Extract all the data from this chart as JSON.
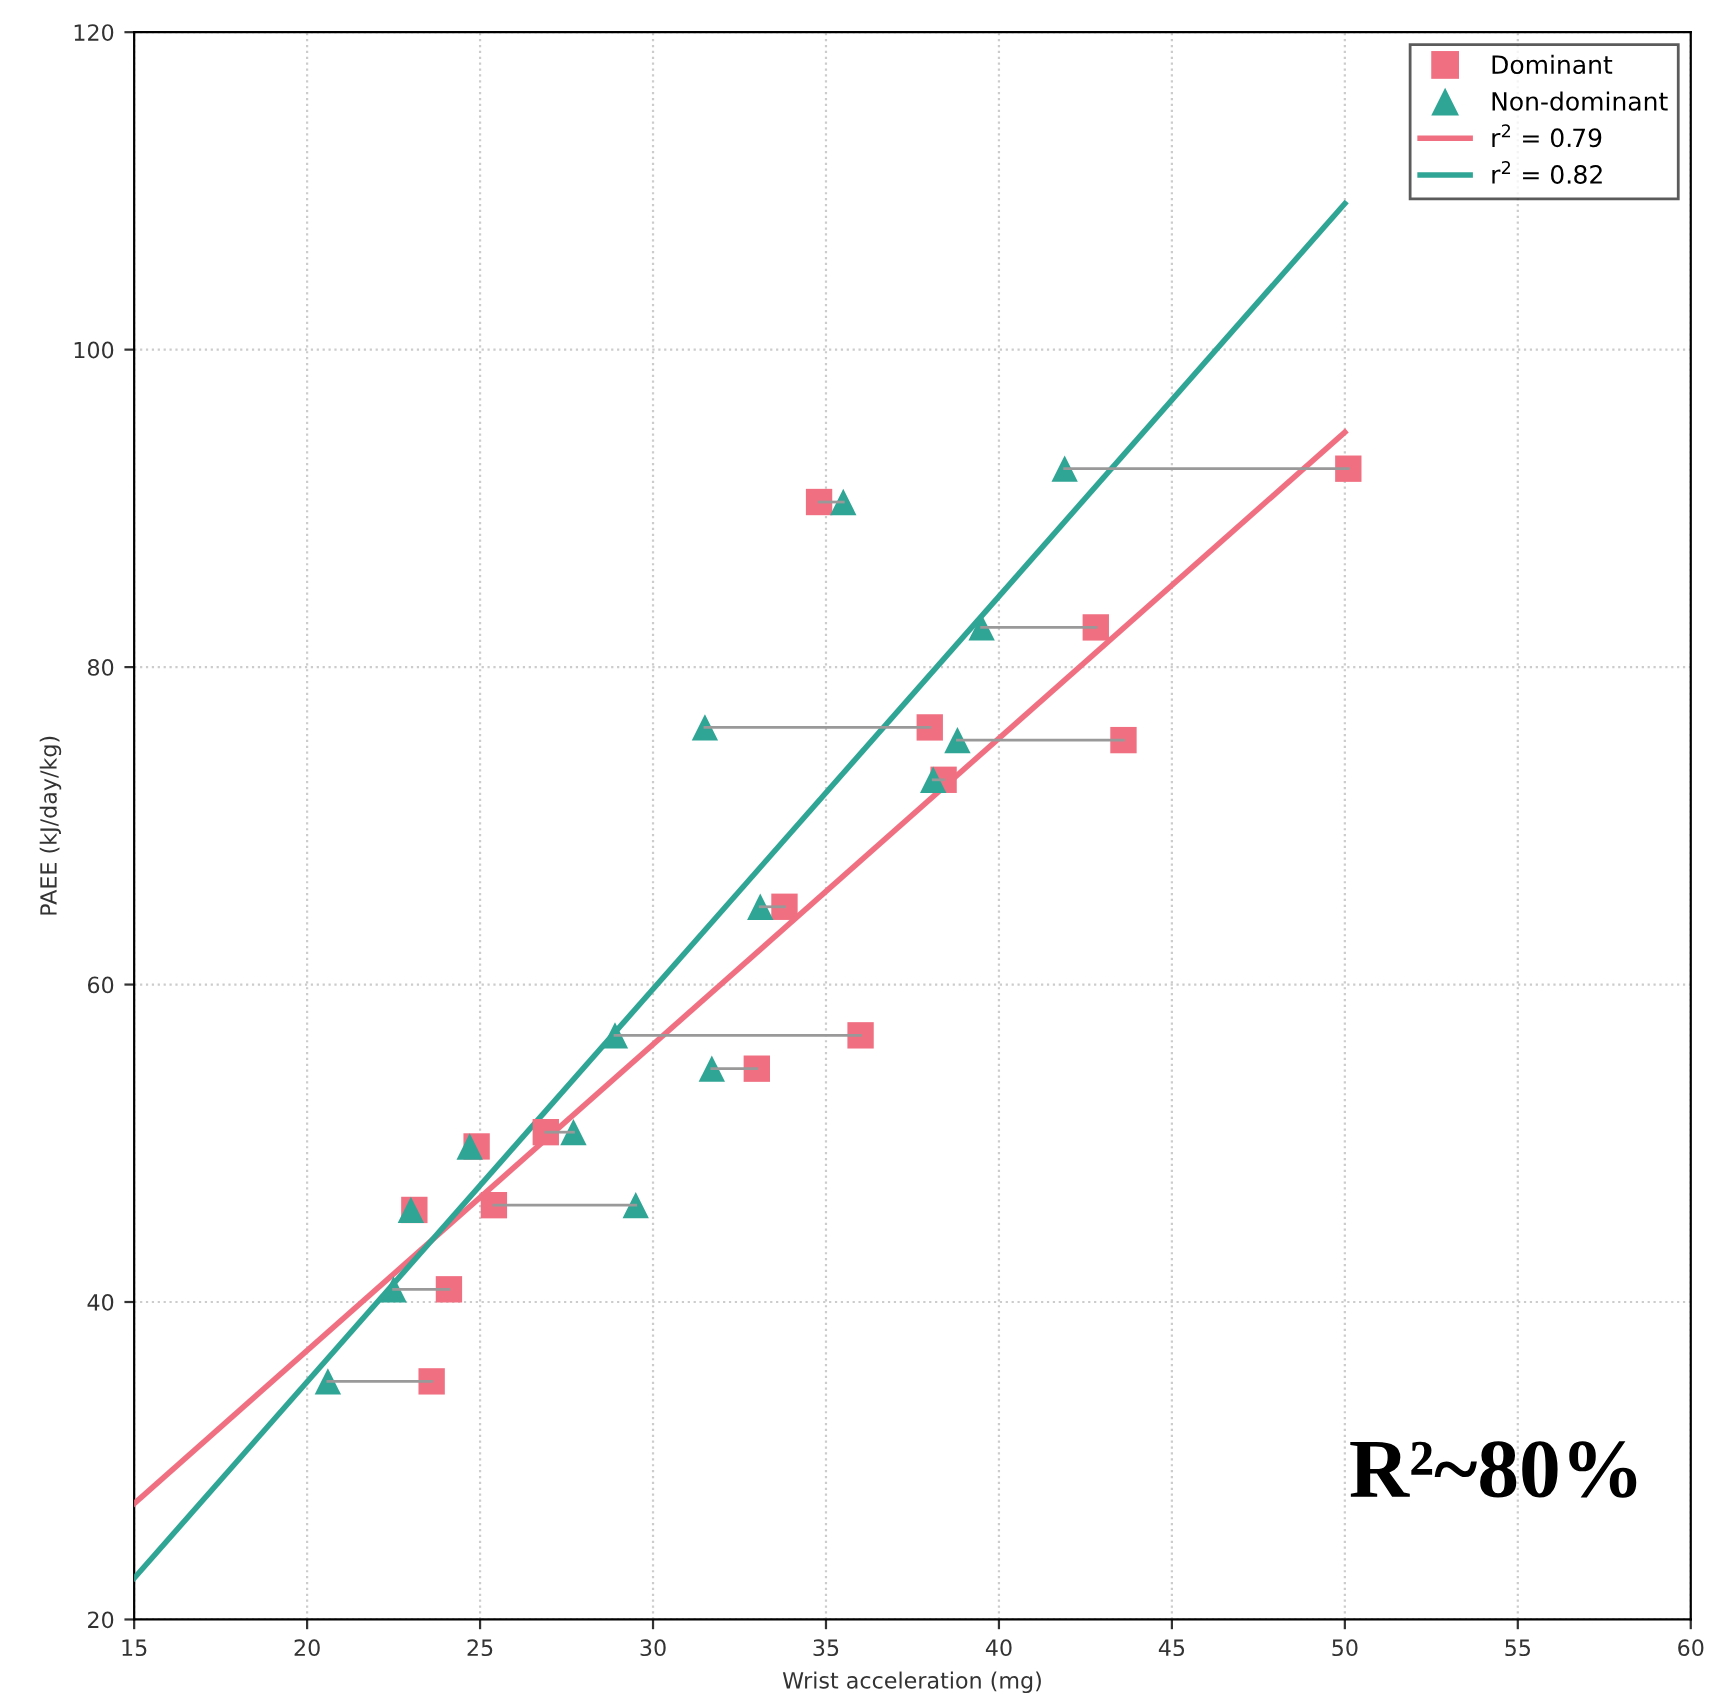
{
  "chart_data": {
    "type": "scatter",
    "xlabel": "Wrist acceleration (mg)",
    "ylabel": "PAEE (kJ/day/kg)",
    "xlim": [
      15,
      60
    ],
    "xticks": [
      15,
      20,
      25,
      30,
      35,
      40,
      45,
      50,
      55,
      60
    ],
    "ylim": [
      20,
      120
    ],
    "yticks": [
      20,
      40,
      60,
      80,
      100,
      120
    ],
    "grid": true,
    "legend": "top right",
    "annotations": [
      "R²~80%"
    ],
    "series": [
      {
        "type": "line",
        "color": "#999999",
        "marker": "none",
        "line_style": "solid",
        "x": [
          50.1,
          41.9
        ],
        "values": [
          92.5,
          92.5
        ]
      },
      {
        "type": "line",
        "color": "#999999",
        "marker": "none",
        "line_style": "solid",
        "x": [
          34.8,
          35.5
        ],
        "values": [
          90.4,
          90.4
        ]
      },
      {
        "type": "line",
        "color": "#999999",
        "marker": "none",
        "line_style": "solid",
        "x": [
          42.8,
          39.5
        ],
        "values": [
          82.5,
          82.5
        ]
      },
      {
        "type": "line",
        "color": "#999999",
        "marker": "none",
        "line_style": "solid",
        "x": [
          38.0,
          31.5
        ],
        "values": [
          76.2,
          76.2
        ]
      },
      {
        "type": "line",
        "color": "#999999",
        "marker": "none",
        "line_style": "solid",
        "x": [
          43.6,
          38.8
        ],
        "values": [
          75.4,
          75.4
        ]
      },
      {
        "type": "line",
        "color": "#999999",
        "marker": "none",
        "line_style": "solid",
        "x": [
          38.4,
          38.1
        ],
        "values": [
          72.9,
          72.9
        ]
      },
      {
        "type": "line",
        "color": "#999999",
        "marker": "none",
        "line_style": "solid",
        "x": [
          33.8,
          33.1
        ],
        "values": [
          64.9,
          64.9
        ]
      },
      {
        "type": "line",
        "color": "#999999",
        "marker": "none",
        "line_style": "solid",
        "x": [
          36.0,
          28.9
        ],
        "values": [
          56.8,
          56.8
        ]
      },
      {
        "type": "line",
        "color": "#999999",
        "marker": "none",
        "line_style": "solid",
        "x": [
          33.0,
          31.7
        ],
        "values": [
          54.7,
          54.7
        ]
      },
      {
        "type": "line",
        "color": "#999999",
        "marker": "none",
        "line_style": "solid",
        "x": [
          26.9,
          27.7
        ],
        "values": [
          50.7,
          50.7
        ]
      },
      {
        "type": "line",
        "color": "#999999",
        "marker": "none",
        "line_style": "solid",
        "x": [
          25.4,
          29.5
        ],
        "values": [
          46.1,
          46.1
        ]
      },
      {
        "type": "line",
        "color": "#999999",
        "marker": "none",
        "line_style": "solid",
        "x": [
          24.1,
          22.5
        ],
        "values": [
          40.8,
          40.8
        ]
      },
      {
        "type": "line",
        "color": "#999999",
        "marker": "none",
        "line_style": "solid",
        "x": [
          23.6,
          20.6
        ],
        "values": [
          35.0,
          35.0
        ]
      },
      {
        "name": "Dominant",
        "color": "#f07082",
        "marker": "square",
        "x": [
          50.1,
          34.8,
          42.8,
          38.0,
          43.6,
          38.4,
          33.8,
          36.0,
          33.0,
          26.9,
          24.9,
          25.4,
          23.1,
          24.1,
          23.6
        ],
        "values": [
          92.5,
          90.4,
          82.5,
          76.2,
          75.4,
          72.9,
          64.9,
          56.8,
          54.7,
          50.7,
          49.8,
          46.1,
          45.8,
          40.8,
          35.0
        ]
      },
      {
        "name": "Non-dominant",
        "color": "#2fa595",
        "marker": "triangle",
        "x": [
          41.9,
          35.5,
          39.5,
          31.5,
          38.8,
          38.1,
          33.1,
          28.9,
          31.7,
          27.7,
          24.7,
          29.5,
          23.0,
          22.5,
          20.6
        ],
        "values": [
          92.5,
          90.4,
          82.5,
          76.2,
          75.4,
          72.9,
          64.9,
          56.8,
          54.7,
          50.7,
          49.8,
          46.1,
          45.8,
          40.8,
          35.0
        ]
      },
      {
        "type": "line",
        "name": "r$^{2}$ = 0.79",
        "color": "#f07082",
        "marker": "none",
        "line_style": "solid",
        "x": [
          15,
          50
        ],
        "values": [
          27.3,
          94.8
        ]
      },
      {
        "type": "line",
        "name": "r$^{2}$ = 0.82",
        "color": "#2fa595",
        "marker": "none",
        "line_style": "solid",
        "x": [
          15,
          50
        ],
        "values": [
          22.6,
          109.2
        ]
      }
    ]
  }
}
